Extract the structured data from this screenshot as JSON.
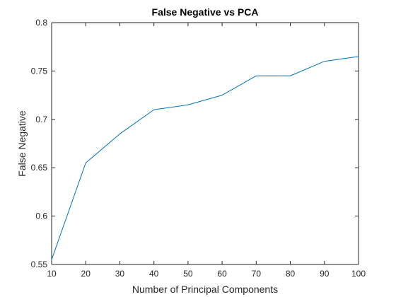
{
  "chart_data": {
    "type": "line",
    "title": "False Negative vs PCA",
    "xlabel": "Number of Principal Components",
    "ylabel": "False Negative",
    "xlim": [
      10,
      100
    ],
    "ylim": [
      0.55,
      0.8
    ],
    "xticks": [
      10,
      20,
      30,
      40,
      50,
      60,
      70,
      80,
      90,
      100
    ],
    "yticks": [
      0.55,
      0.6,
      0.65,
      0.7,
      0.75,
      0.8
    ],
    "ytick_labels": [
      "0.55",
      "0.6",
      "0.65",
      "0.7",
      "0.75",
      "0.8"
    ],
    "grid": false,
    "series": [
      {
        "x": [
          10,
          20,
          30,
          40,
          50,
          60,
          70,
          80,
          90,
          100
        ],
        "values": [
          0.555,
          0.655,
          0.685,
          0.71,
          0.715,
          0.725,
          0.745,
          0.745,
          0.76,
          0.765
        ],
        "color": "#0072bd"
      }
    ],
    "colors": {
      "axis": "#262626",
      "line": "#0072bd",
      "background": "#ffffff"
    }
  }
}
